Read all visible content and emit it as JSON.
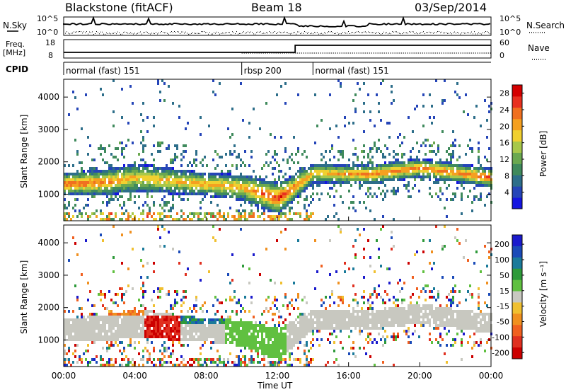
{
  "header": {
    "station": "Blackstone (fitACF)",
    "beam": "Beam 18",
    "date": "03/Sep/2014"
  },
  "noise_panel": {
    "left_label": "N.Sky",
    "right_label": "N.Search",
    "left_ticks": [
      "10^5",
      "10^0"
    ],
    "right_ticks": [
      "10^5",
      "10^0"
    ]
  },
  "freq_panel": {
    "left_label_1": "Freq.",
    "left_label_2": "[MHz]",
    "right_label": "Nave",
    "left_ticks": [
      "18",
      "8"
    ],
    "right_ticks": [
      "60",
      "0"
    ]
  },
  "cpid": {
    "label": "CPID",
    "segments": [
      {
        "name": "normal (fast) 151",
        "start_hour": 0,
        "end_hour": 10
      },
      {
        "name": "rbsp 200",
        "start_hour": 10,
        "end_hour": 14
      },
      {
        "name": "normal (fast) 151",
        "start_hour": 14,
        "end_hour": 24
      }
    ]
  },
  "colors": {
    "power_scale": [
      "#1515e0",
      "#2545b8",
      "#2d6e8a",
      "#3f8a5c",
      "#6aa84f",
      "#a8c84a",
      "#f0d030",
      "#f5a020",
      "#f07020",
      "#e83020",
      "#d40000"
    ],
    "velocity_scale": [
      "#1a1acc",
      "#1a4ab8",
      "#1a7a9a",
      "#2e9a3a",
      "#60c040",
      "#c8c8c0",
      "#f0c030",
      "#f09020",
      "#f06020",
      "#e03020",
      "#cc0000"
    ]
  },
  "chart_data": [
    {
      "type": "heatmap",
      "name": "power",
      "ylabel": "Slant Range [km]",
      "xlabel": "Time UT",
      "x_ticks": [
        "00:00",
        "04:00",
        "08:00",
        "12:00",
        "16:00",
        "20:00",
        "00:00"
      ],
      "xlim_hours": [
        0,
        24
      ],
      "y_ticks": [
        "1000",
        "2000",
        "3000",
        "4000"
      ],
      "ylim": [
        180,
        4550
      ],
      "colorbar": {
        "label": "Power [dB]",
        "ticks": [
          "4",
          "8",
          "12",
          "16",
          "20",
          "24",
          "28"
        ],
        "range": [
          0,
          30
        ]
      },
      "bands": [
        {
          "hour": 0,
          "center": 1350,
          "width": 350,
          "level": 24
        },
        {
          "hour": 2,
          "center": 1400,
          "width": 400,
          "level": 22
        },
        {
          "hour": 4,
          "center": 1550,
          "width": 450,
          "level": 18
        },
        {
          "hour": 6,
          "center": 1450,
          "width": 400,
          "level": 18
        },
        {
          "hour": 8,
          "center": 1350,
          "width": 350,
          "level": 20
        },
        {
          "hour": 10,
          "center": 1250,
          "width": 400,
          "level": 20
        },
        {
          "hour": 12,
          "center": 900,
          "width": 500,
          "level": 26
        },
        {
          "hour": 14,
          "center": 1700,
          "width": 300,
          "level": 18
        },
        {
          "hour": 17,
          "center": 1650,
          "width": 300,
          "level": 22
        },
        {
          "hour": 20,
          "center": 1850,
          "width": 300,
          "level": 22
        },
        {
          "hour": 24,
          "center": 1550,
          "width": 300,
          "level": 24
        }
      ]
    },
    {
      "type": "heatmap",
      "name": "velocity",
      "ylabel": "Slant Range [km]",
      "xlabel": "Time UT",
      "x_ticks": [
        "00:00",
        "04:00",
        "08:00",
        "12:00",
        "16:00",
        "20:00",
        "00:00"
      ],
      "xlim_hours": [
        0,
        24
      ],
      "y_ticks": [
        "1000",
        "2000",
        "3000",
        "4000"
      ],
      "ylim": [
        180,
        4550
      ],
      "colorbar": {
        "label": "Velocity [m s⁻¹]",
        "ticks": [
          "200",
          "100",
          "50",
          "15",
          "-15",
          "-50",
          "-100",
          "-200"
        ],
        "range": [
          -250,
          250
        ]
      }
    }
  ]
}
